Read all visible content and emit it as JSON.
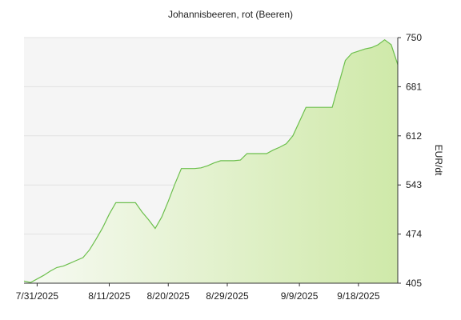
{
  "chart_data": {
    "type": "area",
    "title": "Johannisbeeren, rot (Beeren)",
    "ylabel": "EUR/dt",
    "xlabel": "",
    "ylim": [
      405,
      750
    ],
    "yticks": [
      "405",
      "474",
      "543",
      "612",
      "681",
      "750"
    ],
    "xticks": [
      "7/31/2025",
      "8/11/2025",
      "8/20/2025",
      "8/29/2025",
      "9/9/2025",
      "9/18/2025"
    ],
    "grid": true,
    "colors": {
      "line": "#6cbf4c",
      "fill_light": "#f7faf3",
      "fill_dark": "#cfe9a9",
      "plot_bg": "#f5f5f5"
    },
    "series": [
      {
        "x": [
          "7/29/2025",
          "7/30/2025",
          "7/31/2025",
          "8/1/2025",
          "8/2/2025",
          "8/3/2025",
          "8/4/2025",
          "8/5/2025",
          "8/6/2025",
          "8/7/2025",
          "8/8/2025",
          "8/9/2025",
          "8/10/2025",
          "8/11/2025",
          "8/12/2025",
          "8/13/2025",
          "8/14/2025",
          "8/15/2025",
          "8/16/2025",
          "8/17/2025",
          "8/18/2025",
          "8/19/2025",
          "8/20/2025",
          "8/21/2025",
          "8/22/2025",
          "8/23/2025",
          "8/24/2025",
          "8/25/2025",
          "8/26/2025",
          "8/27/2025",
          "8/28/2025",
          "8/29/2025",
          "8/30/2025",
          "8/31/2025",
          "9/1/2025",
          "9/2/2025",
          "9/3/2025",
          "9/4/2025",
          "9/5/2025",
          "9/6/2025",
          "9/7/2025",
          "9/8/2025",
          "9/9/2025",
          "9/10/2025",
          "9/11/2025",
          "9/12/2025",
          "9/13/2025",
          "9/14/2025",
          "9/15/2025",
          "9/16/2025",
          "9/17/2025",
          "9/18/2025",
          "9/19/2025",
          "9/20/2025",
          "9/21/2025",
          "9/22/2025",
          "9/23/2025",
          "9/24/2025"
        ],
        "values": [
          408,
          406,
          411,
          416,
          422,
          427,
          429,
          433,
          437,
          441,
          452,
          467,
          483,
          502,
          518,
          518,
          518,
          518,
          505,
          494,
          482,
          498,
          520,
          544,
          566,
          566,
          566,
          567,
          570,
          574,
          577,
          577,
          577,
          578,
          587,
          587,
          587,
          587,
          592,
          596,
          601,
          612,
          632,
          652,
          652,
          652,
          652,
          652,
          685,
          718,
          728,
          731,
          734,
          736,
          740,
          747,
          740,
          712
        ]
      }
    ]
  }
}
